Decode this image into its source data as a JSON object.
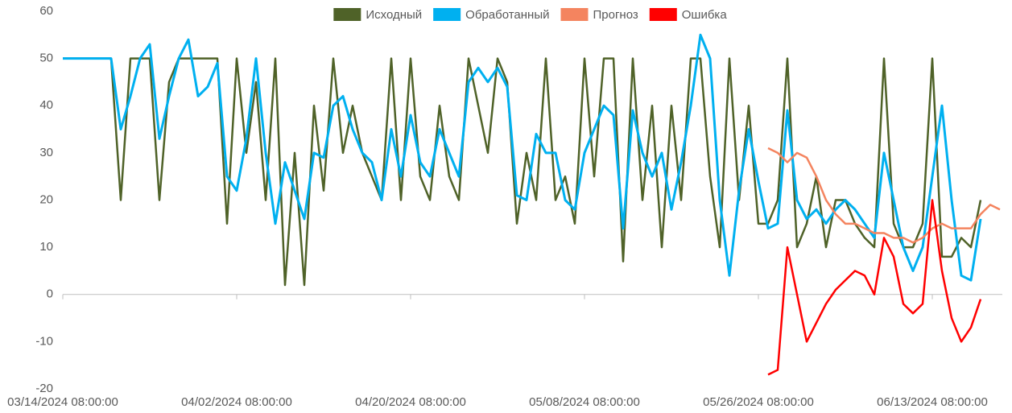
{
  "chart_data": {
    "type": "line",
    "categories": [
      "03/14/2024 08:00:00",
      null,
      null,
      null,
      null,
      null,
      null,
      null,
      null,
      null,
      null,
      null,
      null,
      null,
      null,
      null,
      null,
      null,
      "04/02/2024 08:00:00",
      null,
      null,
      null,
      null,
      null,
      null,
      null,
      null,
      null,
      null,
      null,
      null,
      null,
      null,
      null,
      null,
      null,
      "04/20/2024 08:00:00",
      null,
      null,
      null,
      null,
      null,
      null,
      null,
      null,
      null,
      null,
      null,
      null,
      null,
      null,
      null,
      null,
      null,
      "05/08/2024 08:00:00",
      null,
      null,
      null,
      null,
      null,
      null,
      null,
      null,
      null,
      null,
      null,
      null,
      null,
      null,
      null,
      null,
      null,
      "05/26/2024 08:00:00",
      null,
      null,
      null,
      null,
      null,
      null,
      null,
      null,
      null,
      null,
      null,
      null,
      null,
      null,
      null,
      null,
      null,
      "06/13/2024 08:00:00",
      null,
      null,
      null,
      null,
      null,
      null,
      null
    ],
    "series": [
      {
        "name": "Исходный",
        "color": "#4f6228",
        "values": [
          50,
          50,
          50,
          50,
          50,
          50,
          20,
          50,
          50,
          50,
          20,
          45,
          50,
          50,
          50,
          50,
          50,
          15,
          50,
          30,
          45,
          20,
          50,
          2,
          30,
          2,
          40,
          22,
          50,
          30,
          40,
          30,
          25,
          20,
          50,
          20,
          50,
          25,
          20,
          40,
          25,
          20,
          50,
          40,
          30,
          50,
          45,
          15,
          30,
          20,
          50,
          20,
          25,
          15,
          50,
          25,
          50,
          50,
          7,
          50,
          20,
          40,
          10,
          40,
          20,
          50,
          50,
          25,
          10,
          50,
          20,
          40,
          15,
          15,
          20,
          50,
          10,
          15,
          25,
          10,
          20,
          20,
          15,
          12,
          10,
          50,
          15,
          10,
          10,
          15,
          50,
          8,
          8,
          12,
          10,
          20,
          null,
          null
        ]
      },
      {
        "name": "Обработанный",
        "color": "#00b0f0",
        "values": [
          50,
          50,
          50,
          50,
          50,
          50,
          35,
          42,
          50,
          53,
          33,
          42,
          50,
          54,
          42,
          44,
          49,
          25,
          22,
          33,
          50,
          30,
          15,
          28,
          22,
          16,
          30,
          29,
          40,
          42,
          35,
          30,
          28,
          20,
          35,
          25,
          38,
          28,
          25,
          35,
          30,
          25,
          45,
          48,
          45,
          48,
          44,
          21,
          20,
          34,
          30,
          30,
          20,
          18,
          30,
          35,
          40,
          38,
          14,
          39,
          30,
          25,
          30,
          18,
          28,
          40,
          55,
          50,
          20,
          4,
          22,
          35,
          24,
          14,
          15,
          39,
          20,
          16,
          18,
          15,
          18,
          20,
          18,
          15,
          12,
          30,
          20,
          10,
          5,
          10,
          25,
          40,
          20,
          4,
          3,
          16,
          null,
          null
        ]
      },
      {
        "name": "Прогноз",
        "color": "#f4845f",
        "values": [
          null,
          null,
          null,
          null,
          null,
          null,
          null,
          null,
          null,
          null,
          null,
          null,
          null,
          null,
          null,
          null,
          null,
          null,
          null,
          null,
          null,
          null,
          null,
          null,
          null,
          null,
          null,
          null,
          null,
          null,
          null,
          null,
          null,
          null,
          null,
          null,
          null,
          null,
          null,
          null,
          null,
          null,
          null,
          null,
          null,
          null,
          null,
          null,
          null,
          null,
          null,
          null,
          null,
          null,
          null,
          null,
          null,
          null,
          null,
          null,
          null,
          null,
          null,
          null,
          null,
          null,
          null,
          null,
          null,
          null,
          null,
          null,
          null,
          31,
          30,
          28,
          30,
          29,
          25,
          20,
          17,
          15,
          15,
          14,
          13,
          13,
          12,
          12,
          11,
          12,
          14,
          15,
          14,
          14,
          14,
          17,
          19,
          18
        ]
      },
      {
        "name": "Ошибка",
        "color": "#ff0000",
        "values": [
          null,
          null,
          null,
          null,
          null,
          null,
          null,
          null,
          null,
          null,
          null,
          null,
          null,
          null,
          null,
          null,
          null,
          null,
          null,
          null,
          null,
          null,
          null,
          null,
          null,
          null,
          null,
          null,
          null,
          null,
          null,
          null,
          null,
          null,
          null,
          null,
          null,
          null,
          null,
          null,
          null,
          null,
          null,
          null,
          null,
          null,
          null,
          null,
          null,
          null,
          null,
          null,
          null,
          null,
          null,
          null,
          null,
          null,
          null,
          null,
          null,
          null,
          null,
          null,
          null,
          null,
          null,
          null,
          null,
          null,
          null,
          null,
          null,
          -17,
          -16,
          10,
          0,
          -10,
          -6,
          -2,
          1,
          3,
          5,
          4,
          0,
          12,
          8,
          -2,
          -4,
          -2,
          20,
          5,
          -5,
          -10,
          -7,
          -1,
          null,
          null
        ]
      }
    ],
    "ylim": [
      -20,
      60
    ],
    "yticks": [
      -20,
      -10,
      0,
      10,
      20,
      30,
      40,
      50,
      60
    ],
    "grid": false,
    "legend": "top"
  }
}
